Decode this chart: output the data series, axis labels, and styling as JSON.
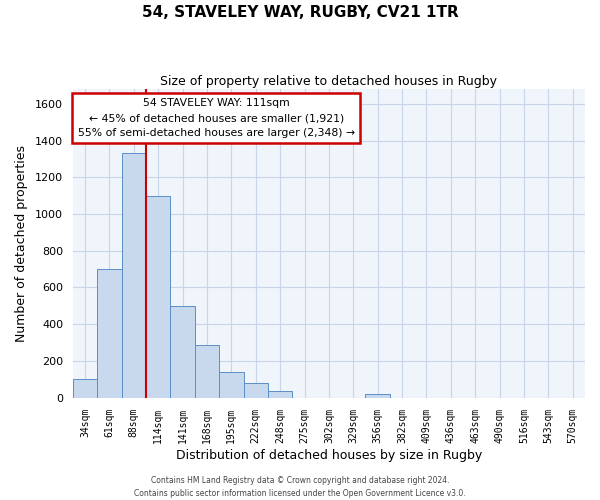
{
  "title": "54, STAVELEY WAY, RUGBY, CV21 1TR",
  "subtitle": "Size of property relative to detached houses in Rugby",
  "xlabel": "Distribution of detached houses by size in Rugby",
  "ylabel": "Number of detached properties",
  "bar_labels": [
    "34sqm",
    "61sqm",
    "88sqm",
    "114sqm",
    "141sqm",
    "168sqm",
    "195sqm",
    "222sqm",
    "248sqm",
    "275sqm",
    "302sqm",
    "329sqm",
    "356sqm",
    "382sqm",
    "409sqm",
    "436sqm",
    "463sqm",
    "490sqm",
    "516sqm",
    "543sqm",
    "570sqm"
  ],
  "bar_heights": [
    100,
    700,
    1330,
    1100,
    500,
    285,
    140,
    80,
    35,
    0,
    0,
    0,
    20,
    0,
    0,
    0,
    0,
    0,
    0,
    0,
    0
  ],
  "bar_color": "#c8d9ed",
  "bar_edge_color": "#5a8ec8",
  "ylim": [
    0,
    1680
  ],
  "yticks": [
    0,
    200,
    400,
    600,
    800,
    1000,
    1200,
    1400,
    1600
  ],
  "vline_x": 2.5,
  "annotation_title": "54 STAVELEY WAY: 111sqm",
  "annotation_line1": "← 45% of detached houses are smaller (1,921)",
  "annotation_line2": "55% of semi-detached houses are larger (2,348) →",
  "annotation_box_color": "#ffffff",
  "annotation_box_edge": "#cc0000",
  "vline_color": "#cc0000",
  "footer1": "Contains HM Land Registry data © Crown copyright and database right 2024.",
  "footer2": "Contains public sector information licensed under the Open Government Licence v3.0.",
  "bg_color": "#ffffff",
  "plot_bg_color": "#f0f4fb",
  "grid_color": "#c8d4e8"
}
